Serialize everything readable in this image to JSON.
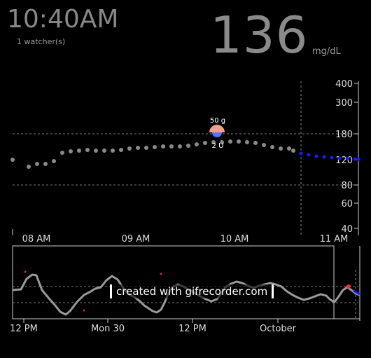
{
  "status": {
    "time": "10:40AM",
    "watchers": "1 watcher(s)",
    "bg_value": "136",
    "bg_unit": "mg/dL"
  },
  "main_chart": {
    "y_ticks": [
      "400",
      "300",
      "180",
      "120",
      "80",
      "60",
      "40"
    ],
    "x_ticks": [
      "08 AM",
      "09 AM",
      "10 AM",
      "11 AM"
    ],
    "treatment": {
      "carbs": "50 g",
      "insulin": "2 U"
    }
  },
  "brush_chart": {
    "x_ticks": [
      "12 PM",
      "Mon 30",
      "12 PM",
      "October"
    ]
  },
  "watermark": "created with gifrecorder.com",
  "colors": {
    "history_dot": "#8a8a8a",
    "forecast_dot": "#1a1aff",
    "carb_marker": "#f0a08a",
    "insulin_marker": "#5577ff",
    "brush_line": "#9a9a9a"
  }
}
